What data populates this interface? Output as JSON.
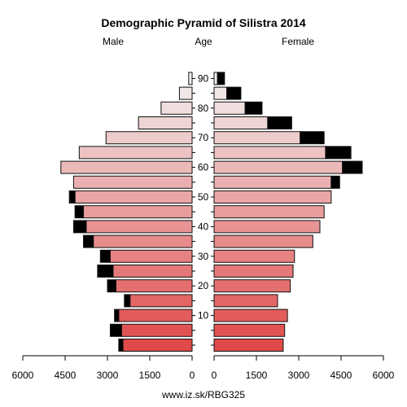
{
  "chart_data": {
    "type": "population-pyramid",
    "title": "Demographic Pyramid of Silistra 2014",
    "left_label": "Male",
    "center_label": "Age",
    "right_label": "Female",
    "footer": "www.iz.sk/RBG325",
    "xlim": [
      0,
      6000
    ],
    "x_ticks": [
      6000,
      4500,
      3000,
      1500,
      0
    ],
    "x_ticks_right": [
      0,
      1500,
      3000,
      4500,
      6000
    ],
    "age_ticks": [
      "10",
      "20",
      "30",
      "40",
      "50",
      "60",
      "70",
      "80",
      "90"
    ],
    "age_groups": [
      "0-4",
      "5-9",
      "10-14",
      "15-19",
      "20-24",
      "25-29",
      "30-34",
      "35-39",
      "40-44",
      "45-49",
      "50-54",
      "55-59",
      "60-64",
      "65-69",
      "70-74",
      "75-79",
      "80-84",
      "85-89",
      "90+"
    ],
    "male_base": [
      2450,
      2500,
      2600,
      2200,
      2700,
      2800,
      2900,
      3500,
      3750,
      3850,
      4150,
      4200,
      4650,
      4000,
      3050,
      1900,
      1100,
      450,
      120
    ],
    "male_excess": [
      150,
      400,
      150,
      200,
      300,
      550,
      350,
      350,
      450,
      300,
      200,
      0,
      0,
      0,
      0,
      0,
      0,
      0,
      0
    ],
    "female_base": [
      2450,
      2500,
      2600,
      2250,
      2700,
      2800,
      2850,
      3500,
      3750,
      3900,
      4150,
      4150,
      4550,
      3950,
      3050,
      1900,
      1100,
      450,
      120
    ],
    "female_excess": [
      0,
      0,
      0,
      0,
      0,
      0,
      0,
      0,
      0,
      0,
      0,
      300,
      700,
      900,
      850,
      850,
      600,
      500,
      250
    ],
    "colors": {
      "bottom": "#e04a4a",
      "top": "#f2f0f0",
      "excess": "#000000",
      "stroke": "#111111"
    }
  }
}
